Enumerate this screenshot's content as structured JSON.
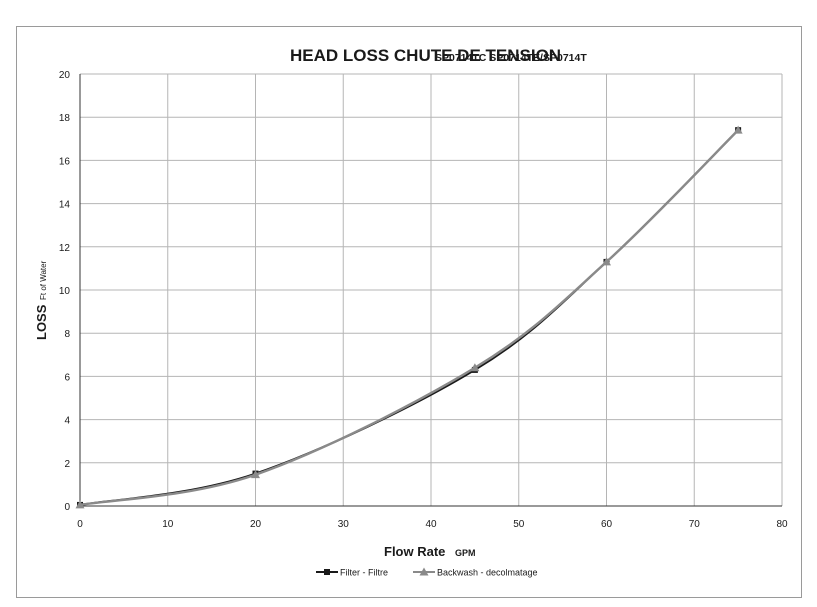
{
  "chart_data": {
    "type": "line",
    "title": "HEAD LOSS  CHUTE DE TENSION",
    "subtitle": "SP0714TC SP0714TE/SP0714T",
    "xlabel": "Flow Rate",
    "xlabel_unit": "GPM",
    "ylabel": "LOSS",
    "ylabel_unit": "Ft of Water",
    "xlim": [
      0,
      80
    ],
    "ylim": [
      0,
      20
    ],
    "x_ticks": [
      "0",
      "10",
      "20",
      "30",
      "40",
      "50",
      "60",
      "70",
      "80"
    ],
    "y_ticks": [
      "0",
      "2",
      "4",
      "6",
      "8",
      "10",
      "12",
      "14",
      "16",
      "18",
      "20"
    ],
    "grid": true,
    "legend_position": "bottom",
    "series": [
      {
        "name": "Filter - Filtre",
        "color": "#1a1a1a",
        "marker": "square",
        "x": [
          0,
          20,
          45,
          60,
          75
        ],
        "y": [
          0.05,
          1.5,
          6.3,
          11.3,
          17.4
        ]
      },
      {
        "name": "Backwash - decolmatage",
        "color": "#8a8a8a",
        "marker": "triangle",
        "x": [
          0,
          20,
          45,
          60,
          75
        ],
        "y": [
          0.05,
          1.45,
          6.4,
          11.3,
          17.4
        ]
      }
    ]
  }
}
